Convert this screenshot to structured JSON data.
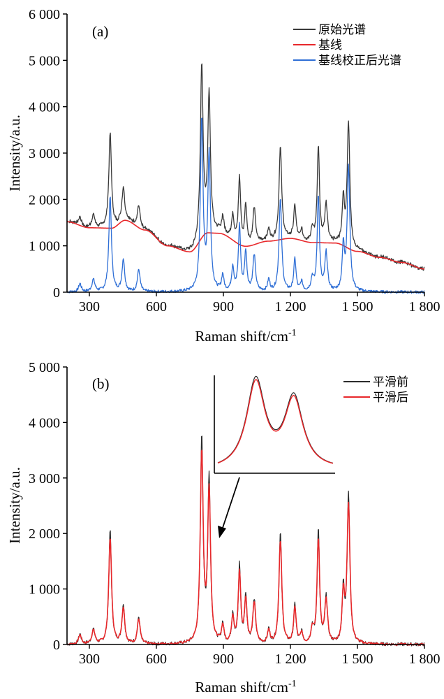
{
  "colors": {
    "raw": "#3a3a3a",
    "baseline": "#e8282b",
    "corrected": "#2f6fd6",
    "before_smooth": "#2b2b2b",
    "after_smooth": "#e8282b"
  },
  "chart_data": [
    {
      "id": "a",
      "type": "line",
      "panel_label": "(a)",
      "xlabel": "Raman shift/cm",
      "xlabel_sup": "-1",
      "ylabel": "Intensity/a.u.",
      "xlim": [
        200,
        1800
      ],
      "ylim": [
        0,
        6000
      ],
      "xticks": [
        300,
        600,
        900,
        1200,
        1500,
        1800
      ],
      "xtick_labels": [
        "300",
        "600",
        "900",
        "1 200",
        "1 500",
        "1 800"
      ],
      "yticks": [
        0,
        1000,
        2000,
        3000,
        4000,
        5000,
        6000
      ],
      "ytick_labels": [
        "0",
        "1 000",
        "2 000",
        "3 000",
        "4 000",
        "5 000",
        "6 000"
      ],
      "legend_position": "top-right",
      "peaks": [
        {
          "x": 258,
          "height": 180,
          "width": 7
        },
        {
          "x": 318,
          "height": 260,
          "width": 8
        },
        {
          "x": 393,
          "height": 2050,
          "width": 7
        },
        {
          "x": 452,
          "height": 700,
          "width": 7
        },
        {
          "x": 521,
          "height": 480,
          "width": 7
        },
        {
          "x": 803,
          "height": 3700,
          "width": 7
        },
        {
          "x": 836,
          "height": 2950,
          "width": 7
        },
        {
          "x": 897,
          "height": 340,
          "width": 6
        },
        {
          "x": 942,
          "height": 520,
          "width": 6
        },
        {
          "x": 972,
          "height": 1400,
          "width": 6
        },
        {
          "x": 1000,
          "height": 850,
          "width": 6
        },
        {
          "x": 1038,
          "height": 780,
          "width": 7
        },
        {
          "x": 1103,
          "height": 250,
          "width": 6
        },
        {
          "x": 1155,
          "height": 2000,
          "width": 7
        },
        {
          "x": 1220,
          "height": 700,
          "width": 6
        },
        {
          "x": 1250,
          "height": 200,
          "width": 6
        },
        {
          "x": 1298,
          "height": 280,
          "width": 7
        },
        {
          "x": 1325,
          "height": 2080,
          "width": 6
        },
        {
          "x": 1360,
          "height": 820,
          "width": 7
        },
        {
          "x": 1437,
          "height": 950,
          "width": 6
        },
        {
          "x": 1460,
          "height": 2700,
          "width": 7
        }
      ],
      "baseline": {
        "x": [
          200,
          300,
          400,
          460,
          550,
          650,
          750,
          830,
          880,
          1000,
          1100,
          1200,
          1300,
          1400,
          1500,
          1600,
          1700,
          1800
        ],
        "y": [
          1520,
          1390,
          1380,
          1550,
          1340,
          1000,
          870,
          1280,
          1270,
          990,
          1100,
          1160,
          1070,
          1060,
          880,
          750,
          640,
          500
        ]
      },
      "series": [
        {
          "name": "原始光谱",
          "kind": "raw"
        },
        {
          "name": "基线",
          "kind": "baseline"
        },
        {
          "name": "基线校正后光谱",
          "kind": "corrected"
        }
      ]
    },
    {
      "id": "b",
      "type": "line",
      "panel_label": "(b)",
      "xlabel": "Raman shift/cm",
      "xlabel_sup": "-1",
      "ylabel": "Intensity/a.u.",
      "xlim": [
        200,
        1800
      ],
      "ylim": [
        0,
        5000
      ],
      "xticks": [
        300,
        600,
        900,
        1200,
        1500,
        1800
      ],
      "xtick_labels": [
        "300",
        "600",
        "900",
        "1 200",
        "1 500",
        "1 800"
      ],
      "yticks": [
        0,
        1000,
        2000,
        3000,
        4000,
        5000
      ],
      "ytick_labels": [
        "0",
        "1 000",
        "2 000",
        "3 000",
        "4 000",
        "5 000"
      ],
      "legend_position": "top-right",
      "inset": {
        "xlim": [
          770,
          870
        ],
        "annotation": "arrow from inset to peak at 836"
      },
      "series": [
        {
          "name": "平滑前",
          "kind": "before_smooth"
        },
        {
          "name": "平滑后",
          "kind": "after_smooth"
        }
      ]
    }
  ]
}
